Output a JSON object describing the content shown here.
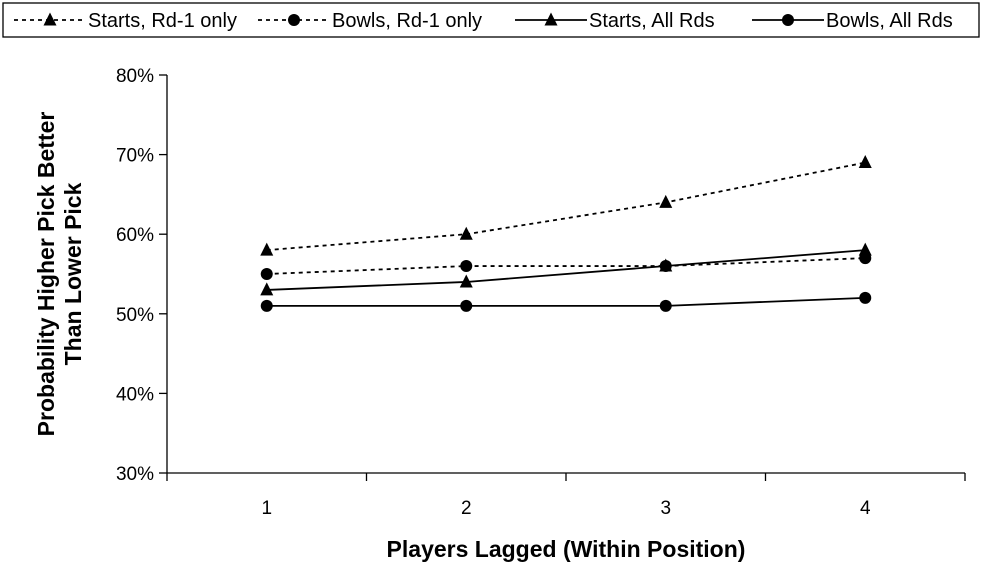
{
  "chart_data": {
    "type": "line",
    "title": "",
    "xlabel": "Players Lagged (Within Position)",
    "ylabel": [
      "Probability Higher Pick Better",
      "Than Lower Pick"
    ],
    "x": [
      "1",
      "2",
      "3",
      "4"
    ],
    "ylim": [
      0.3,
      0.8
    ],
    "yticks": [
      0.3,
      0.4,
      0.5,
      0.6,
      0.7,
      0.8
    ],
    "ytick_labels": [
      "30%",
      "40%",
      "50%",
      "60%",
      "70%",
      "80%"
    ],
    "grid": false,
    "legend_position": "top",
    "series": [
      {
        "name": "Starts, Rd-1 only",
        "values": [
          0.58,
          0.6,
          0.64,
          0.69
        ],
        "marker": "triangle",
        "line": "dashed",
        "color": "#000000"
      },
      {
        "name": "Bowls, Rd-1 only",
        "values": [
          0.55,
          0.56,
          0.56,
          0.57
        ],
        "marker": "circle",
        "line": "dashed",
        "color": "#000000"
      },
      {
        "name": "Starts, All Rds",
        "values": [
          0.53,
          0.54,
          0.56,
          0.58
        ],
        "marker": "triangle",
        "line": "solid",
        "color": "#000000"
      },
      {
        "name": "Bowls, All Rds",
        "values": [
          0.51,
          0.51,
          0.51,
          0.52
        ],
        "marker": "circle",
        "line": "solid",
        "color": "#000000"
      }
    ]
  }
}
